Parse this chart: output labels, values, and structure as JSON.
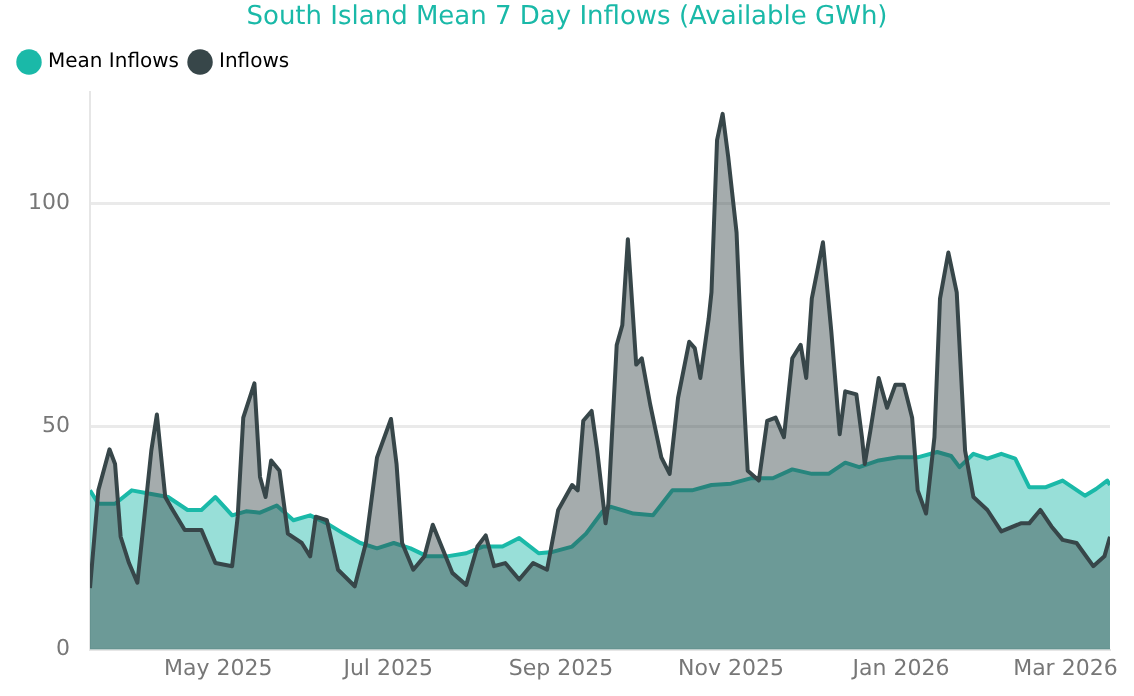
{
  "chart_data": {
    "type": "area",
    "title": "South Island Mean 7 Day Inflows (Available GWh)",
    "legend": "top left",
    "grid": "y",
    "xlim": [
      "2025-03-16",
      "2026-03-17"
    ],
    "xticks": [
      {
        "value": "2025-05-01",
        "label": "May 2025"
      },
      {
        "value": "2025-07-01",
        "label": "Jul 2025"
      },
      {
        "value": "2025-09-01",
        "label": "Sep 2025"
      },
      {
        "value": "2025-11-01",
        "label": "Nov 2025"
      },
      {
        "value": "2026-01-01",
        "label": "Jan 2026"
      },
      {
        "value": "2026-03-01",
        "label": "Mar 2026"
      }
    ],
    "ylim": [
      0,
      125
    ],
    "yticks": [
      0,
      50,
      100
    ],
    "series": [
      {
        "name": "Mean Inflows",
        "color": "#1ab9a8",
        "x": [
          "2025-03-16",
          "2025-03-19",
          "2025-03-25",
          "2025-03-31",
          "2025-04-06",
          "2025-04-13",
          "2025-04-20",
          "2025-04-25",
          "2025-04-30",
          "2025-05-06",
          "2025-05-11",
          "2025-05-16",
          "2025-05-22",
          "2025-05-28",
          "2025-06-03",
          "2025-06-09",
          "2025-06-15",
          "2025-06-21",
          "2025-06-27",
          "2025-07-03",
          "2025-07-09",
          "2025-07-15",
          "2025-07-22",
          "2025-07-29",
          "2025-08-04",
          "2025-08-11",
          "2025-08-17",
          "2025-08-24",
          "2025-08-29",
          "2025-09-05",
          "2025-09-10",
          "2025-09-16",
          "2025-09-19",
          "2025-09-27",
          "2025-10-04",
          "2025-10-11",
          "2025-10-18",
          "2025-10-25",
          "2025-11-01",
          "2025-11-08",
          "2025-11-16",
          "2025-11-23",
          "2025-11-30",
          "2025-12-06",
          "2025-12-12",
          "2025-12-17",
          "2025-12-24",
          "2025-12-31",
          "2026-01-07",
          "2026-01-14",
          "2026-01-19",
          "2026-01-22",
          "2026-01-27",
          "2026-02-01",
          "2026-02-06",
          "2026-02-11",
          "2026-02-16",
          "2026-02-22",
          "2026-02-28",
          "2026-03-08",
          "2026-03-12",
          "2026-03-16",
          "2026-03-17"
        ],
        "values": [
          35.7,
          32.7,
          32.7,
          35.7,
          35,
          34.2,
          31.3,
          31.3,
          34.2,
          30.1,
          31,
          30.7,
          32.3,
          29,
          30.1,
          28.3,
          26,
          23.9,
          22.7,
          23.9,
          22.7,
          20.9,
          20.9,
          21.6,
          23.1,
          23.1,
          25,
          21.6,
          21.9,
          23.1,
          26,
          31,
          32,
          30.5,
          30.1,
          35.7,
          35.7,
          36.9,
          37.2,
          38.4,
          38.4,
          40.4,
          39.4,
          39.4,
          41.9,
          40.9,
          42.4,
          43.1,
          43.1,
          44.3,
          43.4,
          40.9,
          43.9,
          42.8,
          43.9,
          42.8,
          36.4,
          36.4,
          37.9,
          34.5,
          36,
          37.9,
          36.9
        ]
      },
      {
        "name": "Inflows",
        "color": "#374649",
        "x": [
          "2025-03-16",
          "2025-03-19",
          "2025-03-23",
          "2025-03-25",
          "2025-03-27",
          "2025-03-30",
          "2025-04-02",
          "2025-04-05",
          "2025-04-07",
          "2025-04-09",
          "2025-04-12",
          "2025-04-14",
          "2025-04-19",
          "2025-04-25",
          "2025-04-30",
          "2025-05-06",
          "2025-05-08",
          "2025-05-10",
          "2025-05-14",
          "2025-05-16",
          "2025-05-18",
          "2025-05-20",
          "2025-05-23",
          "2025-05-26",
          "2025-05-31",
          "2025-06-03",
          "2025-06-05",
          "2025-06-09",
          "2025-06-13",
          "2025-06-19",
          "2025-06-23",
          "2025-06-27",
          "2025-07-02",
          "2025-07-04",
          "2025-07-06",
          "2025-07-10",
          "2025-07-14",
          "2025-07-17",
          "2025-07-24",
          "2025-07-29",
          "2025-08-02",
          "2025-08-05",
          "2025-08-08",
          "2025-08-12",
          "2025-08-17",
          "2025-08-22",
          "2025-08-27",
          "2025-08-31",
          "2025-09-05",
          "2025-09-07",
          "2025-09-09",
          "2025-09-12",
          "2025-09-14",
          "2025-09-17",
          "2025-09-18",
          "2025-09-21",
          "2025-09-23",
          "2025-09-25",
          "2025-09-28",
          "2025-09-30",
          "2025-10-03",
          "2025-10-07",
          "2025-10-10",
          "2025-10-13",
          "2025-10-17",
          "2025-10-19",
          "2025-10-21",
          "2025-10-24",
          "2025-10-25",
          "2025-10-27",
          "2025-10-29",
          "2025-10-31",
          "2025-11-03",
          "2025-11-05",
          "2025-11-07",
          "2025-11-11",
          "2025-11-14",
          "2025-11-17",
          "2025-11-20",
          "2025-11-23",
          "2025-11-26",
          "2025-11-28",
          "2025-11-30",
          "2025-12-04",
          "2025-12-07",
          "2025-12-10",
          "2025-12-12",
          "2025-12-16",
          "2025-12-18",
          "2025-12-19",
          "2025-12-21",
          "2025-12-24",
          "2025-12-27",
          "2025-12-30",
          "2026-01-02",
          "2026-01-05",
          "2026-01-07",
          "2026-01-10",
          "2026-01-13",
          "2026-01-15",
          "2026-01-18",
          "2026-01-21",
          "2026-01-24",
          "2026-01-27",
          "2026-02-01",
          "2026-02-06",
          "2026-02-13",
          "2026-02-16",
          "2026-02-20",
          "2026-02-24",
          "2026-02-28",
          "2026-03-05",
          "2026-03-11",
          "2026-03-15",
          "2026-03-17"
        ],
        "values": [
          13.8,
          35.7,
          44.9,
          41.6,
          25.3,
          19.4,
          15,
          32.7,
          44.6,
          52.7,
          34.2,
          32,
          26.8,
          26.8,
          19.4,
          18.7,
          29.8,
          52,
          59.7,
          38.7,
          34.2,
          42.4,
          40.1,
          26,
          23.9,
          20.9,
          29.8,
          29,
          17.9,
          14.2,
          23.9,
          43.1,
          51.7,
          41.6,
          23.9,
          17.9,
          20.9,
          28,
          17.2,
          14.5,
          23.1,
          25.6,
          18.7,
          19.4,
          15.7,
          19.4,
          17.9,
          31.3,
          36.9,
          35.7,
          51.3,
          53.5,
          44.6,
          28.3,
          32.7,
          68.3,
          72.7,
          92,
          63.9,
          65.3,
          55,
          43.1,
          39.4,
          56.4,
          69,
          67.6,
          60.9,
          74.2,
          80.1,
          114.2,
          120.1,
          110.5,
          93.5,
          63.9,
          40.1,
          37.9,
          51.3,
          52,
          47.6,
          65.3,
          68.3,
          60.9,
          78.7,
          91.3,
          71.3,
          48.3,
          57.9,
          57.2,
          47.6,
          41.6,
          49,
          60.9,
          54.2,
          59.4,
          59.4,
          52,
          35.7,
          30.5,
          47.6,
          78.7,
          89,
          80.1,
          44.6,
          34.2,
          31.3,
          26.5,
          28.3,
          28.3,
          31.3,
          27.6,
          24.6,
          23.9,
          18.7,
          20.9,
          25.3
        ]
      }
    ]
  }
}
